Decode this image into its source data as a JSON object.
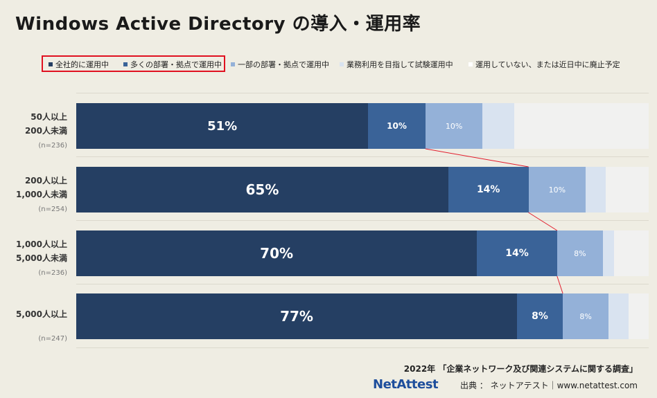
{
  "title": "Windows Active Directory の導入・運用率",
  "colors": {
    "series": [
      "#253f63",
      "#3a6398",
      "#94b1d8",
      "#d9e3f0",
      "#f1f1f0"
    ],
    "connector": "#e21b2b",
    "highlight": "#e01020",
    "brand": "#1e4e9c"
  },
  "chart_data": {
    "type": "bar",
    "orientation": "horizontal-stacked-100",
    "title": "Windows Active Directory の導入・運用率",
    "legend_position": "top",
    "series": [
      {
        "name": "全社的に運用中",
        "values": [
          51,
          65,
          70,
          77
        ],
        "labels": [
          "51%",
          "65%",
          "70%",
          "77%"
        ]
      },
      {
        "name": "多くの部署・拠点で運用中",
        "values": [
          10,
          14,
          14,
          8
        ],
        "labels": [
          "10%",
          "14%",
          "14%",
          "8%"
        ]
      },
      {
        "name": "一部の部署・拠点で運用中",
        "values": [
          10,
          10,
          8,
          8
        ],
        "labels": [
          "10%",
          "10%",
          "8%",
          "8%"
        ]
      },
      {
        "name": "業務利用を目指して試験運用中",
        "values": [
          5.5,
          3.5,
          2,
          3.5
        ],
        "labels": [
          "",
          "",
          "",
          ""
        ]
      },
      {
        "name": "運用していない、または近日中に廃止予定",
        "values": [
          23.5,
          7.5,
          6,
          3.5
        ],
        "labels": [
          "",
          "",
          "",
          ""
        ]
      }
    ],
    "categories": [
      {
        "line1": "50人以上",
        "line2": "200人未満",
        "n": "(n=236)"
      },
      {
        "line1": "200人以上",
        "line2": "1,000人未満",
        "n": "(n=254)"
      },
      {
        "line1": "1,000人以上",
        "line2": "5,000人未満",
        "n": "(n=236)"
      },
      {
        "line1": "5,000人以上",
        "line2": "",
        "n": "(n=247)"
      }
    ],
    "xlim": [
      0,
      100
    ]
  },
  "footer": {
    "source": "2022年 「企業ネットワーク及び関連システムに関する調査」",
    "brand": "NetAttest",
    "credit": "出典 ： ネットアテスト｜www.netattest.com"
  }
}
